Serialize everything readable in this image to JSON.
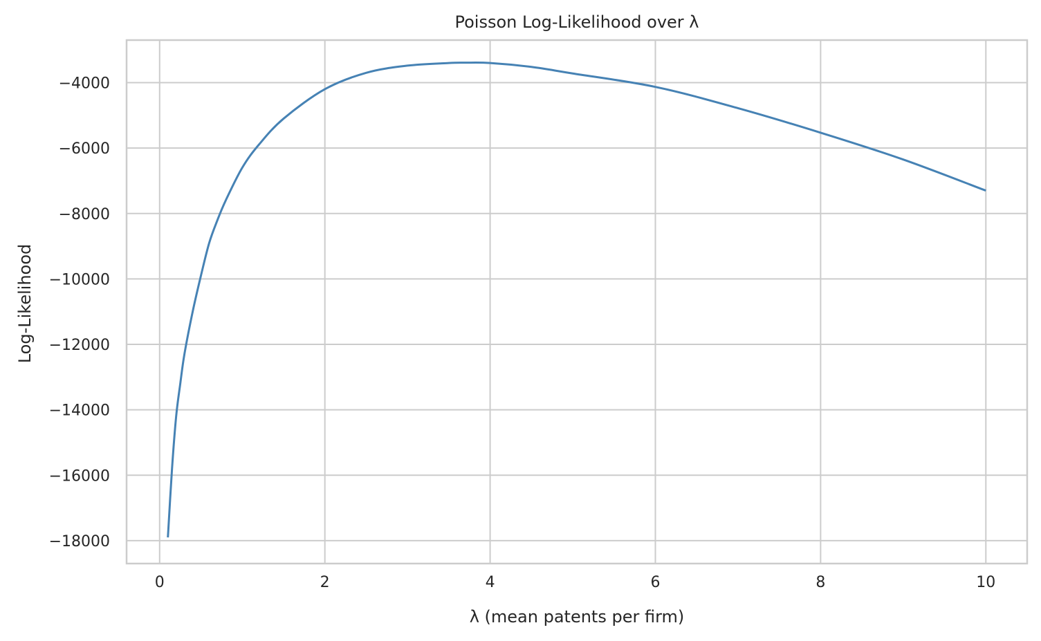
{
  "chart_data": {
    "type": "line",
    "title": "Poisson Log-Likelihood over λ",
    "xlabel": "λ (mean patents per firm)",
    "ylabel": "Log-Likelihood",
    "xlim": [
      -0.4,
      10.5
    ],
    "ylim": [
      -18700,
      -2700
    ],
    "xticks": [
      0,
      2,
      4,
      6,
      8,
      10
    ],
    "xtick_labels": [
      "0",
      "2",
      "4",
      "6",
      "8",
      "10"
    ],
    "yticks": [
      -4000,
      -6000,
      -8000,
      -10000,
      -12000,
      -14000,
      -16000,
      -18000
    ],
    "ytick_labels": [
      "−4000",
      "−6000",
      "−8000",
      "−10000",
      "−12000",
      "−14000",
      "−16000",
      "−18000"
    ],
    "grid": true,
    "legend": "none",
    "line_color": "#4682b4",
    "series": [
      {
        "x": [
          0.1,
          0.15,
          0.2,
          0.25,
          0.3,
          0.4,
          0.5,
          0.6,
          0.7,
          0.8,
          1.0,
          1.2,
          1.5,
          2.0,
          2.5,
          3.0,
          3.5,
          3.7,
          4.0,
          4.5,
          5.0,
          6.0,
          7.0,
          8.0,
          9.0,
          10.0
        ],
        "y": [
          -17900,
          -15800,
          -14200,
          -13200,
          -12300,
          -11000,
          -9900,
          -8900,
          -8200,
          -7600,
          -6600,
          -5900,
          -5100,
          -4200,
          -3700,
          -3480,
          -3400,
          -3390,
          -3400,
          -3520,
          -3720,
          -4130,
          -4780,
          -5530,
          -6350,
          -7300
        ]
      }
    ]
  }
}
